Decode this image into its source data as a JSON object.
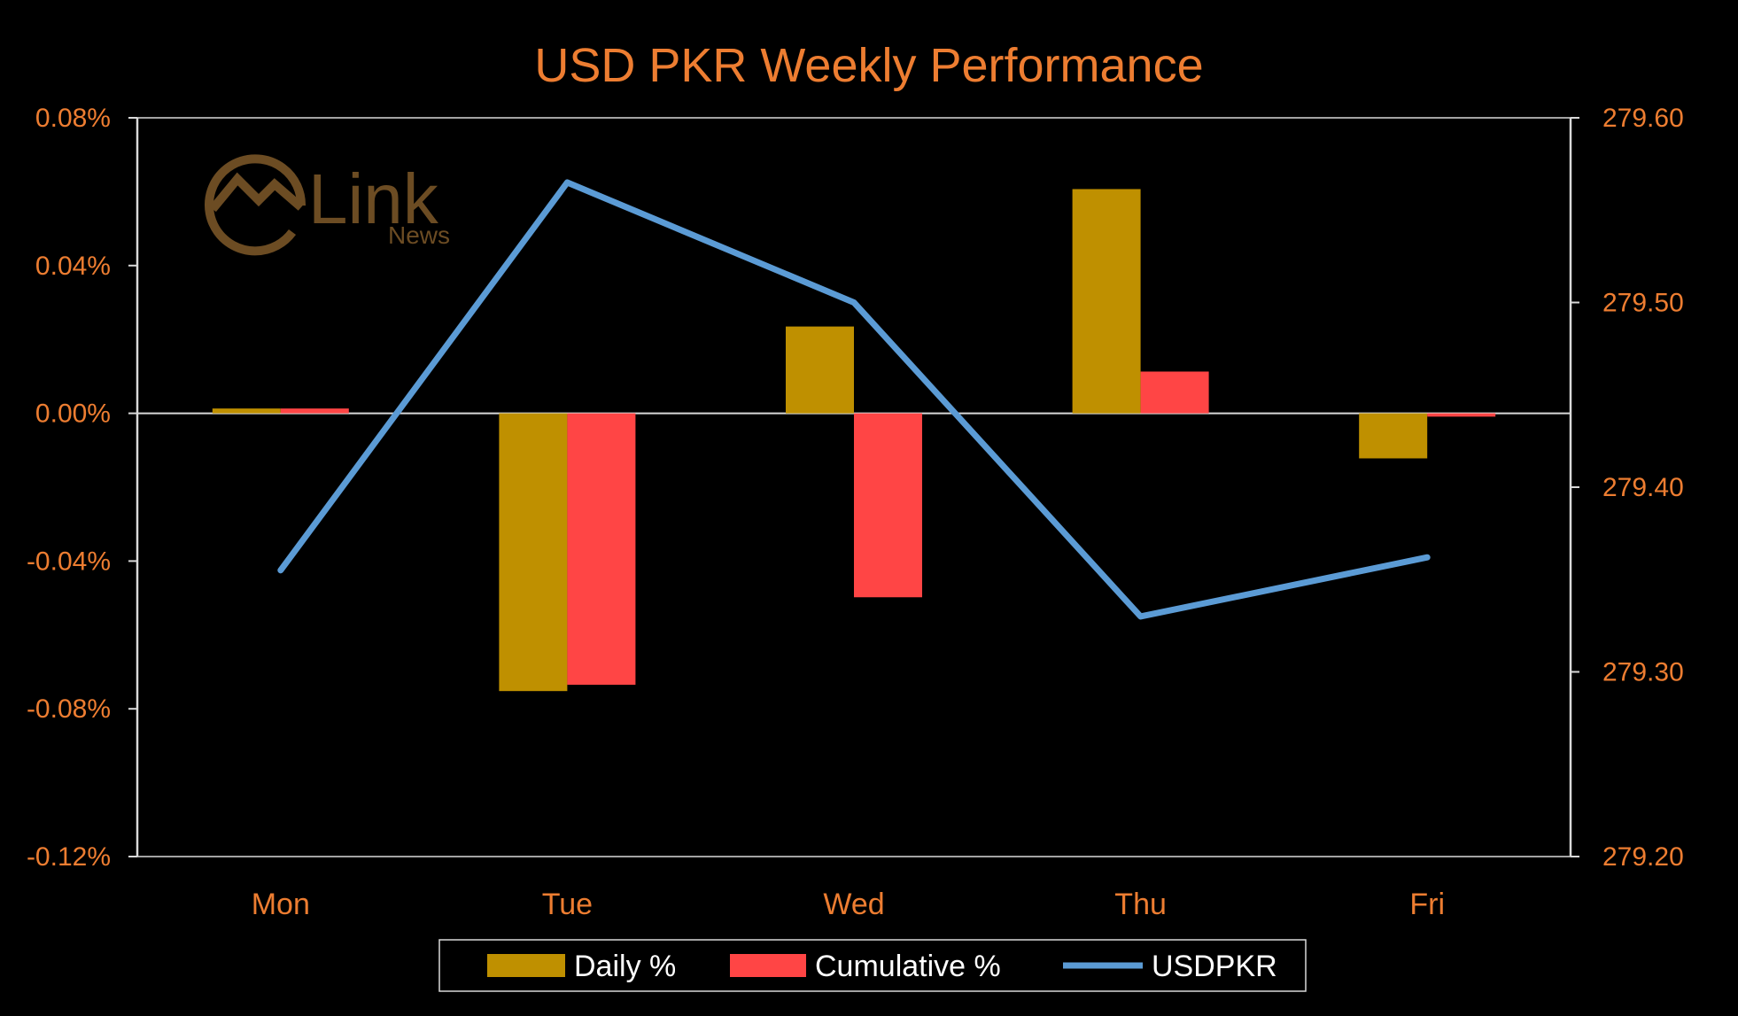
{
  "chart_data": {
    "type": "bar",
    "title": "USD PKR Weekly Performance",
    "categories": [
      "Mon",
      "Tue",
      "Wed",
      "Thu",
      "Fri"
    ],
    "series": [
      {
        "name": "Daily %",
        "type": "bar",
        "axis": "left",
        "color": "#BF9000",
        "values": [
          0.0013,
          -0.0752,
          0.0235,
          0.0607,
          -0.0122
        ]
      },
      {
        "name": "Cumulative %",
        "type": "bar",
        "axis": "left",
        "color": "#FF4545",
        "values": [
          0.0013,
          -0.0735,
          -0.0498,
          0.0113,
          -0.0009
        ]
      },
      {
        "name": "USDPKR",
        "type": "line",
        "axis": "right",
        "color": "#5B9BD5",
        "values": [
          279.355,
          279.565,
          279.5,
          279.33,
          279.362
        ]
      }
    ],
    "left_axis": {
      "min": -0.12,
      "max": 0.08,
      "step": 0.04,
      "ticks": [
        "-0.12%",
        "-0.08%",
        "-0.04%",
        "0.00%",
        "0.04%",
        "0.08%"
      ]
    },
    "right_axis": {
      "min": 279.2,
      "max": 279.6,
      "step": 0.1,
      "ticks": [
        "279.20",
        "279.30",
        "279.40",
        "279.50",
        "279.60"
      ]
    },
    "legend_position": "bottom",
    "colors": {
      "background": "#000000",
      "text": "#ED7D31",
      "axis": "#D9D9D9",
      "legend_text": "#FFFFFF"
    }
  },
  "logo": {
    "word": "Link",
    "sub": "News"
  }
}
